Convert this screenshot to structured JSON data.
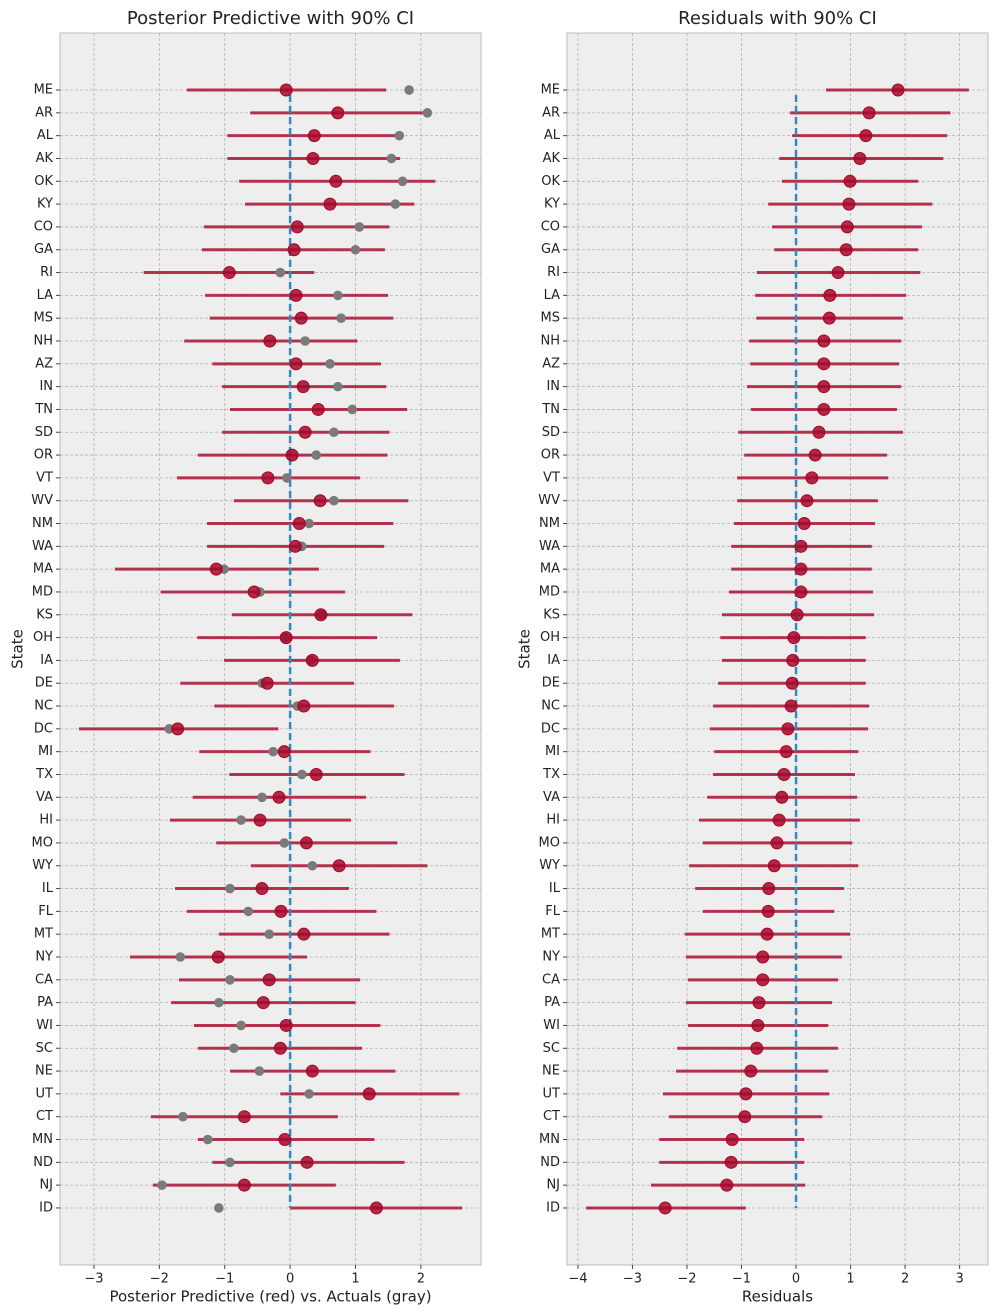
{
  "chart_data": [
    {
      "type": "interval",
      "title": "Posterior Predictive with 90% CI",
      "xlabel": "Posterior Predictive (red) vs. Actuals (gray)",
      "ylabel": "State",
      "categories": [
        "ME",
        "AR",
        "AL",
        "AK",
        "OK",
        "KY",
        "CO",
        "GA",
        "RI",
        "LA",
        "MS",
        "NH",
        "AZ",
        "IN",
        "TN",
        "SD",
        "OR",
        "VT",
        "WV",
        "NM",
        "WA",
        "MA",
        "MD",
        "KS",
        "OH",
        "IA",
        "DE",
        "NC",
        "DC",
        "MI",
        "TX",
        "VA",
        "HI",
        "MO",
        "WY",
        "IL",
        "FL",
        "MT",
        "NY",
        "CA",
        "PA",
        "WI",
        "SC",
        "NE",
        "UT",
        "CT",
        "MN",
        "ND",
        "NJ",
        "ID"
      ],
      "series": [
        {
          "color": "#a60628",
          "values": [
            -0.06,
            0.73,
            0.37,
            0.35,
            0.7,
            0.61,
            0.11,
            0.06,
            -0.93,
            0.09,
            0.17,
            -0.31,
            0.09,
            0.2,
            0.43,
            0.23,
            0.03,
            -0.34,
            0.46,
            0.14,
            0.08,
            -1.13,
            -0.55,
            0.47,
            -0.06,
            0.34,
            -0.35,
            0.21,
            -1.72,
            -0.09,
            0.4,
            -0.17,
            -0.46,
            0.25,
            0.75,
            -0.43,
            -0.14,
            0.21,
            -1.1,
            -0.32,
            -0.41,
            -0.06,
            -0.15,
            0.34,
            1.21,
            -0.7,
            -0.08,
            0.26,
            -0.7,
            1.32
          ],
          "lower": [
            -1.58,
            -0.61,
            -0.96,
            -0.96,
            -0.78,
            -0.69,
            -1.32,
            -1.35,
            -2.24,
            -1.3,
            -1.23,
            -1.62,
            -1.19,
            -1.04,
            -0.92,
            -1.04,
            -1.41,
            -1.73,
            -0.86,
            -1.27,
            -1.27,
            -2.68,
            -1.98,
            -0.89,
            -1.42,
            -1.01,
            -1.68,
            -1.16,
            -3.23,
            -1.39,
            -0.93,
            -1.49,
            -1.84,
            -1.13,
            -0.6,
            -1.76,
            -1.58,
            -1.09,
            -2.45,
            -1.7,
            -1.82,
            -1.47,
            -1.41,
            -0.92,
            -0.15,
            -2.13,
            -1.41,
            -1.19,
            -2.1,
            0.0
          ],
          "upper": [
            1.47,
            2.1,
            1.67,
            1.68,
            2.22,
            1.9,
            1.52,
            1.45,
            0.37,
            1.5,
            1.58,
            1.03,
            1.39,
            1.47,
            1.79,
            1.52,
            1.49,
            1.07,
            1.81,
            1.58,
            1.44,
            0.44,
            0.84,
            1.87,
            1.33,
            1.68,
            0.98,
            1.59,
            -0.18,
            1.23,
            1.75,
            1.16,
            0.93,
            1.64,
            2.1,
            0.9,
            1.32,
            1.52,
            0.26,
            1.07,
            1.0,
            1.38,
            1.1,
            1.61,
            2.59,
            0.73,
            1.29,
            1.75,
            0.7,
            2.63
          ]
        },
        {
          "color": "#7a7a7a",
          "values": [
            1.82,
            2.1,
            1.67,
            1.55,
            1.72,
            1.61,
            1.06,
            1.0,
            -0.15,
            0.73,
            0.78,
            0.23,
            0.61,
            0.73,
            0.95,
            0.67,
            0.4,
            -0.05,
            0.67,
            0.29,
            0.18,
            -1.01,
            -0.46,
            0.49,
            -0.08,
            0.31,
            -0.43,
            0.11,
            -1.85,
            -0.26,
            0.18,
            -0.43,
            -0.75,
            -0.09,
            0.34,
            -0.92,
            -0.64,
            -0.32,
            -1.68,
            -0.92,
            -1.09,
            -0.75,
            -0.86,
            -0.47,
            0.29,
            -1.64,
            -1.26,
            -0.92,
            -1.96,
            -1.09
          ]
        }
      ],
      "xlim": [
        -3.52,
        2.92
      ],
      "xticks": [
        {
          "value": -3,
          "label": "−3"
        },
        {
          "value": -2,
          "label": "−2"
        },
        {
          "value": -1,
          "label": "−1"
        },
        0,
        1,
        2
      ],
      "grid": true,
      "reference_x": 0
    },
    {
      "type": "interval",
      "title": "Residuals with 90% CI",
      "xlabel": "Residuals",
      "ylabel": "State",
      "categories": [
        "ME",
        "AR",
        "AL",
        "AK",
        "OK",
        "KY",
        "CO",
        "GA",
        "RI",
        "LA",
        "MS",
        "NH",
        "AZ",
        "IN",
        "TN",
        "SD",
        "OR",
        "VT",
        "WV",
        "NM",
        "WA",
        "MA",
        "MD",
        "KS",
        "OH",
        "IA",
        "DE",
        "NC",
        "DC",
        "MI",
        "TX",
        "VA",
        "HI",
        "MO",
        "WY",
        "IL",
        "FL",
        "MT",
        "NY",
        "CA",
        "PA",
        "WI",
        "SC",
        "NE",
        "UT",
        "CT",
        "MN",
        "ND",
        "NJ",
        "ID"
      ],
      "series": [
        {
          "color": "#a60628",
          "values": [
            1.87,
            1.34,
            1.28,
            1.17,
            0.99,
            0.97,
            0.94,
            0.92,
            0.77,
            0.62,
            0.61,
            0.51,
            0.51,
            0.51,
            0.51,
            0.42,
            0.35,
            0.29,
            0.2,
            0.15,
            0.09,
            0.09,
            0.09,
            0.02,
            -0.04,
            -0.06,
            -0.07,
            -0.09,
            -0.15,
            -0.18,
            -0.22,
            -0.26,
            -0.31,
            -0.35,
            -0.4,
            -0.5,
            -0.51,
            -0.53,
            -0.61,
            -0.61,
            -0.68,
            -0.7,
            -0.72,
            -0.83,
            -0.92,
            -0.94,
            -1.17,
            -1.19,
            -1.27,
            -2.4
          ],
          "lower": [
            0.55,
            -0.11,
            -0.07,
            -0.31,
            -0.26,
            -0.51,
            -0.44,
            -0.4,
            -0.72,
            -0.75,
            -0.73,
            -0.86,
            -0.84,
            -0.9,
            -0.83,
            -1.06,
            -0.95,
            -1.08,
            -1.08,
            -1.14,
            -1.19,
            -1.19,
            -1.23,
            -1.36,
            -1.39,
            -1.36,
            -1.43,
            -1.52,
            -1.58,
            -1.5,
            -1.52,
            -1.63,
            -1.78,
            -1.71,
            -1.96,
            -1.85,
            -1.71,
            -2.04,
            -2.02,
            -1.98,
            -2.02,
            -1.98,
            -2.18,
            -2.2,
            -2.44,
            -2.33,
            -2.51,
            -2.51,
            -2.66,
            -3.85
          ],
          "upper": [
            3.17,
            2.83,
            2.77,
            2.7,
            2.24,
            2.5,
            2.31,
            2.24,
            2.28,
            2.02,
            1.96,
            1.93,
            1.89,
            1.93,
            1.85,
            1.96,
            1.67,
            1.69,
            1.5,
            1.45,
            1.39,
            1.39,
            1.41,
            1.43,
            1.28,
            1.28,
            1.28,
            1.34,
            1.32,
            1.14,
            1.08,
            1.12,
            1.17,
            1.03,
            1.14,
            0.88,
            0.7,
            0.99,
            0.84,
            0.77,
            0.66,
            0.59,
            0.77,
            0.59,
            0.61,
            0.48,
            0.15,
            0.15,
            0.17,
            -0.92
          ]
        }
      ],
      "xlim": [
        -4.2,
        3.52
      ],
      "xticks": [
        {
          "value": -4,
          "label": "−4"
        },
        {
          "value": -3,
          "label": "−3"
        },
        {
          "value": -2,
          "label": "−2"
        },
        {
          "value": -1,
          "label": "−1"
        },
        0,
        1,
        2,
        3
      ],
      "grid": true,
      "reference_x": 0
    }
  ]
}
